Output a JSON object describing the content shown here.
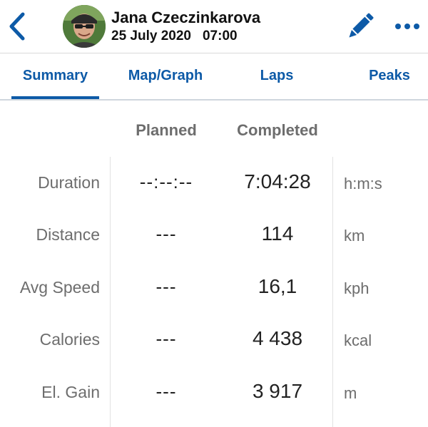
{
  "header": {
    "name": "Jana Czeczinkarova",
    "date": "25 July 2020",
    "time": "07:00",
    "accent_color": "#0d5aa7"
  },
  "tabs": [
    {
      "label": "Summary",
      "active": true
    },
    {
      "label": "Map/Graph",
      "active": false
    },
    {
      "label": "Laps",
      "active": false
    },
    {
      "label": "Peaks",
      "active": false
    }
  ],
  "table": {
    "columns": [
      "Planned",
      "Completed"
    ],
    "rows": [
      {
        "label": "Duration",
        "planned": "--:--:--",
        "completed": "7:04:28",
        "unit": "h:m:s"
      },
      {
        "label": "Distance",
        "planned": "---",
        "completed": "114",
        "unit": "km"
      },
      {
        "label": "Avg Speed",
        "planned": "---",
        "completed": "16,1",
        "unit": "kph"
      },
      {
        "label": "Calories",
        "planned": "---",
        "completed": "4 438",
        "unit": "kcal"
      },
      {
        "label": "El. Gain",
        "planned": "---",
        "completed": "3 917",
        "unit": "m"
      }
    ]
  },
  "icons": {
    "back": "chevron-left-icon",
    "edit": "pencil-icon",
    "more": "ellipsis-icon"
  }
}
